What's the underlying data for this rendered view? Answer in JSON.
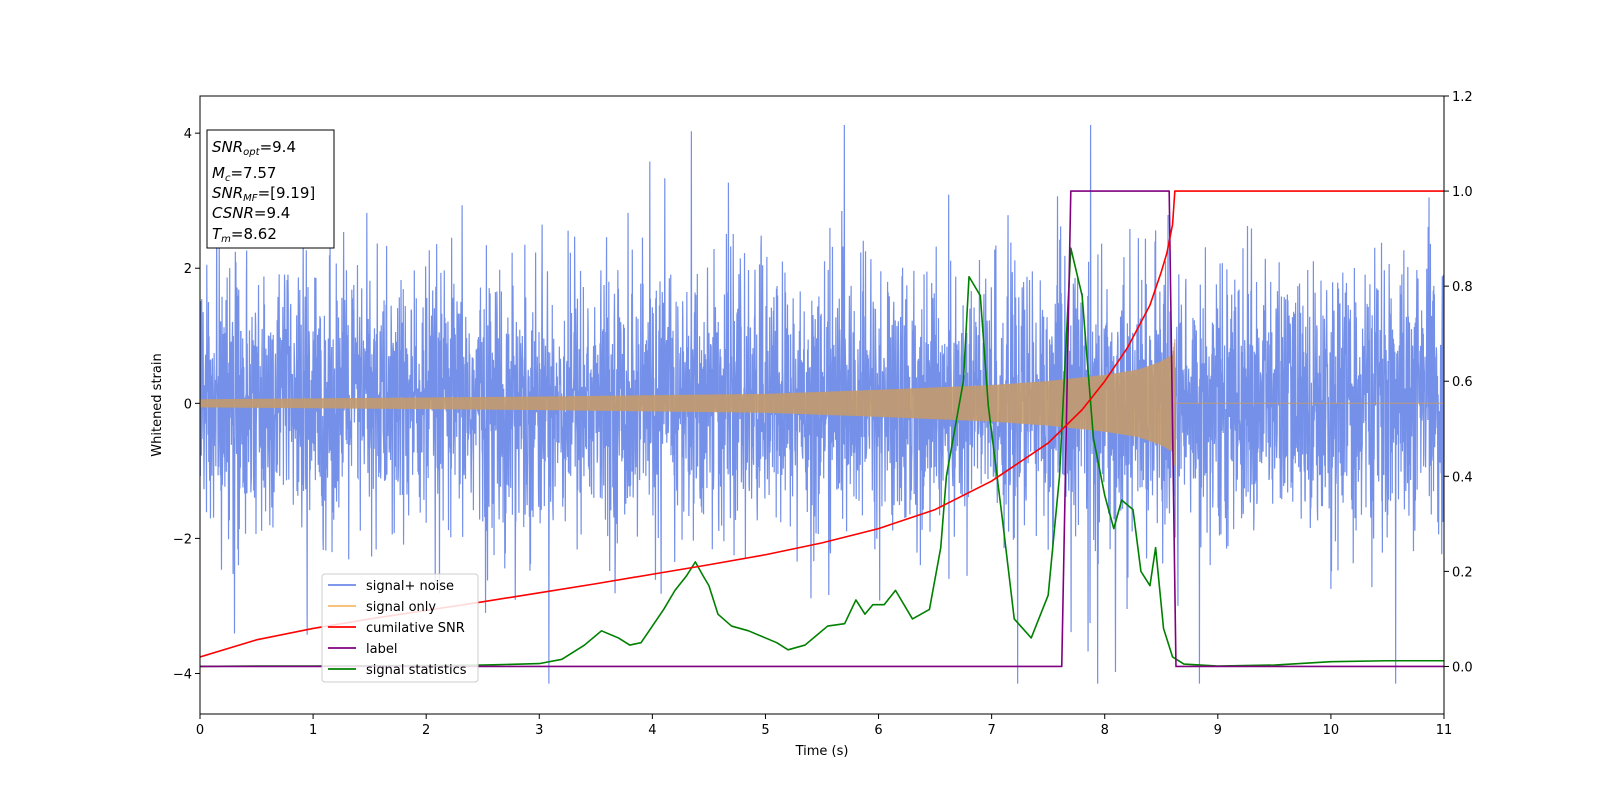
{
  "chart_data": {
    "type": "line",
    "x_axis": {
      "label": "Time (s)",
      "range": [
        0,
        11
      ],
      "ticks": [
        0,
        1,
        2,
        3,
        4,
        5,
        6,
        7,
        8,
        9,
        10,
        11
      ],
      "tick_labels": [
        "0",
        "1",
        "2",
        "3",
        "4",
        "5",
        "6",
        "7",
        "8",
        "9",
        "10",
        "11"
      ]
    },
    "y_axis_left": {
      "label": "Whitened strain",
      "range": [
        -4.6,
        4.55
      ],
      "ticks": [
        -4,
        -2,
        0,
        2,
        4
      ],
      "tick_labels": [
        "−4",
        "−2",
        "0",
        "2",
        "4"
      ]
    },
    "y_axis_right": {
      "range": [
        -0.1,
        1.2
      ],
      "ticks": [
        0.0,
        0.2,
        0.4,
        0.6,
        0.8,
        1.0,
        1.2
      ],
      "tick_labels": [
        "0.0",
        "0.2",
        "0.4",
        "0.6",
        "0.8",
        "1.0",
        "1.2"
      ]
    },
    "annotation": {
      "snr_opt": {
        "label": "SNR",
        "sub": "opt",
        "value": "=9.4"
      },
      "mc": {
        "label": "M",
        "sub": "c",
        "value": "=7.57"
      },
      "snr_mf": {
        "label": "SNR",
        "sub": "MF",
        "value": "=[9.19]"
      },
      "csnr": {
        "label": "CSNR",
        "value": "=9.4"
      },
      "tm": {
        "label": "T",
        "sub": "m",
        "value": "=8.62"
      }
    },
    "legend": {
      "placement": "lower-left",
      "entries": [
        {
          "label": "signal+ noise",
          "color": "#6d8ae8"
        },
        {
          "label": "signal only",
          "color": "#f5b96b"
        },
        {
          "label": "cumilative SNR",
          "color": "#ff0000"
        },
        {
          "label": "label",
          "color": "#800080"
        },
        {
          "label": "signal statistics",
          "color": "#008000"
        }
      ]
    },
    "series": [
      {
        "name": "signal+ noise",
        "axis": "left",
        "kind": "noise",
        "color": "#6d8ae8",
        "std": 1.1,
        "typical_range": [
          -3.4,
          3.6
        ],
        "extremes": [
          -4.15,
          4.12
        ],
        "x_range": [
          0,
          11
        ]
      },
      {
        "name": "signal only",
        "axis": "left",
        "kind": "chirp",
        "color": "#c49a6c",
        "x_range": [
          0,
          11
        ],
        "merger_time": 8.62,
        "amplitude_start": 0.05,
        "amplitude_peak": 0.95,
        "amplitude_envelope": {
          "t": [
            0,
            3,
            5,
            6,
            7,
            7.5,
            8,
            8.3,
            8.5,
            8.6,
            8.62
          ],
          "a": [
            0.06,
            0.1,
            0.14,
            0.2,
            0.27,
            0.33,
            0.42,
            0.5,
            0.62,
            0.72,
            0.95
          ]
        }
      },
      {
        "name": "cumilative SNR",
        "axis": "right",
        "color": "#ff0000",
        "x": [
          0,
          0.5,
          1,
          1.5,
          2,
          2.5,
          3,
          3.5,
          4,
          4.5,
          5,
          5.5,
          6,
          6.5,
          7,
          7.5,
          7.8,
          8.0,
          8.2,
          8.4,
          8.5,
          8.55,
          8.6,
          8.62,
          9,
          10,
          11
        ],
        "y": [
          0.02,
          0.056,
          0.08,
          0.1,
          0.118,
          0.136,
          0.155,
          0.174,
          0.194,
          0.214,
          0.235,
          0.26,
          0.29,
          0.33,
          0.39,
          0.47,
          0.54,
          0.6,
          0.67,
          0.76,
          0.83,
          0.87,
          0.93,
          1.0,
          1.0,
          1.0,
          1.0
        ]
      },
      {
        "name": "label",
        "axis": "right",
        "color": "#800080",
        "x": [
          0,
          7.62,
          7.7,
          8.57,
          8.63,
          11
        ],
        "y": [
          0,
          0,
          1,
          1,
          0,
          0
        ]
      },
      {
        "name": "signal statistics",
        "axis": "right",
        "color": "#008000",
        "x": [
          0,
          0.5,
          1,
          2,
          2.5,
          3,
          3.2,
          3.4,
          3.55,
          3.7,
          3.8,
          3.9,
          4.1,
          4.2,
          4.3,
          4.38,
          4.45,
          4.5,
          4.58,
          4.7,
          4.85,
          5.0,
          5.1,
          5.2,
          5.35,
          5.55,
          5.7,
          5.8,
          5.88,
          5.95,
          6.05,
          6.15,
          6.3,
          6.45,
          6.55,
          6.6,
          6.75,
          6.8,
          6.9,
          6.97,
          7.1,
          7.2,
          7.35,
          7.5,
          7.6,
          7.7,
          7.8,
          7.9,
          8.0,
          8.08,
          8.15,
          8.25,
          8.32,
          8.4,
          8.45,
          8.52,
          8.6,
          8.7,
          9.0,
          9.5,
          10.0,
          10.5,
          11.0
        ],
        "y": [
          0.0,
          0.001,
          0.001,
          0.002,
          0.003,
          0.006,
          0.015,
          0.045,
          0.075,
          0.06,
          0.045,
          0.05,
          0.12,
          0.16,
          0.19,
          0.22,
          0.19,
          0.17,
          0.11,
          0.085,
          0.075,
          0.06,
          0.05,
          0.035,
          0.045,
          0.085,
          0.09,
          0.14,
          0.11,
          0.13,
          0.13,
          0.16,
          0.1,
          0.12,
          0.25,
          0.4,
          0.6,
          0.82,
          0.78,
          0.55,
          0.3,
          0.1,
          0.06,
          0.15,
          0.4,
          0.88,
          0.78,
          0.48,
          0.36,
          0.29,
          0.35,
          0.33,
          0.2,
          0.17,
          0.25,
          0.08,
          0.02,
          0.005,
          0.001,
          0.003,
          0.01,
          0.012,
          0.012
        ]
      }
    ]
  }
}
